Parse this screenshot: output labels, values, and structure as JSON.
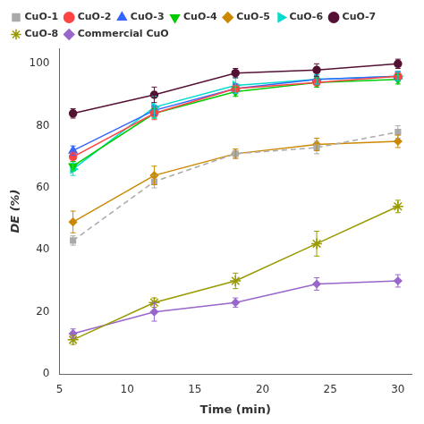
{
  "chart_data": {
    "type": "line",
    "xlabel": "Time (min)",
    "ylabel": "DE (%)",
    "x": [
      6,
      12,
      18,
      24,
      30
    ],
    "xlim": [
      5,
      31
    ],
    "ylim": [
      0,
      105
    ],
    "xticks": [
      5,
      10,
      15,
      20,
      25,
      30
    ],
    "yticks": [
      0,
      20,
      40,
      60,
      80,
      100
    ],
    "grid": false,
    "legend": "upper left",
    "series": [
      {
        "name": "CuO-1",
        "color": "#aaaaaa",
        "line_style": "dashed",
        "marker": "square",
        "values": [
          43,
          62,
          71,
          73,
          78
        ],
        "errors": [
          1.5,
          2.0,
          1.5,
          2.0,
          2.0
        ]
      },
      {
        "name": "CuO-2",
        "color": "#ff4444",
        "line_style": "solid",
        "marker": "circle",
        "values": [
          70,
          84,
          92,
          94,
          96
        ],
        "errors": [
          1.5,
          2.0,
          1.5,
          1.5,
          1.5
        ]
      },
      {
        "name": "CuO-3",
        "color": "#3366ff",
        "line_style": "solid",
        "marker": "triangle-up",
        "values": [
          72,
          85,
          92,
          95,
          96
        ],
        "errors": [
          1.5,
          1.5,
          1.5,
          1.5,
          1.5
        ]
      },
      {
        "name": "CuO-4",
        "color": "#00cc00",
        "line_style": "solid",
        "marker": "triangle-down",
        "values": [
          67,
          84,
          91,
          94,
          95
        ],
        "errors": [
          1.5,
          1.5,
          1.5,
          1.5,
          1.5
        ]
      },
      {
        "name": "CuO-5",
        "color": "#cc8800",
        "line_style": "solid",
        "marker": "diamond",
        "values": [
          49,
          64,
          71,
          74,
          75
        ],
        "errors": [
          3.5,
          3.0,
          1.5,
          2.0,
          2.0
        ]
      },
      {
        "name": "CuO-6",
        "color": "#00ddcc",
        "line_style": "solid",
        "marker": "triangle-right",
        "values": [
          66,
          86,
          93,
          95,
          96
        ],
        "errors": [
          2.0,
          3.5,
          2.5,
          1.5,
          1.5
        ]
      },
      {
        "name": "CuO-7",
        "color": "#551133",
        "line_style": "solid",
        "marker": "circle",
        "values": [
          84,
          90,
          97,
          98,
          100
        ],
        "errors": [
          1.5,
          2.5,
          1.5,
          2.0,
          1.5
        ]
      },
      {
        "name": "CuO-8",
        "color": "#999900",
        "line_style": "solid",
        "marker": "star",
        "values": [
          11,
          23,
          30,
          42,
          54
        ],
        "errors": [
          1.5,
          1.5,
          2.5,
          4.0,
          2.0
        ]
      },
      {
        "name": "Commercial CuO",
        "color": "#9966cc",
        "line_style": "solid",
        "marker": "diamond",
        "values": [
          13,
          20,
          23,
          29,
          30
        ],
        "errors": [
          1.5,
          3.0,
          1.5,
          2.0,
          2.0
        ]
      }
    ]
  }
}
